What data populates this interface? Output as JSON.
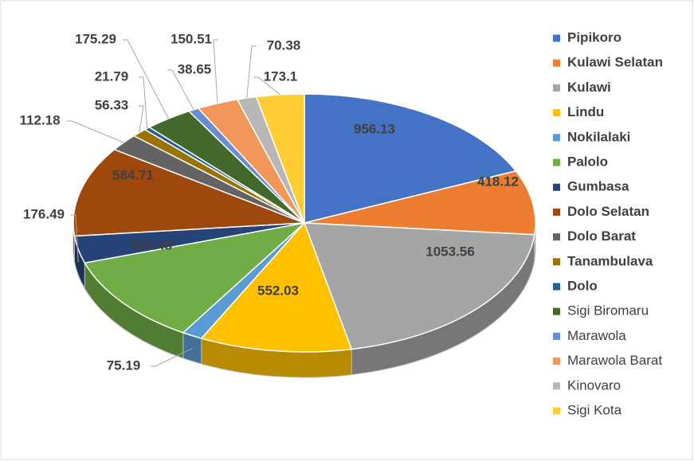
{
  "chart_data": {
    "type": "pie3d",
    "categories": [
      "Pipikoro",
      "Kulawi Selatan",
      "Kulawi",
      "Lindu",
      "Nokilalaki",
      "Palolo",
      "Gumbasa",
      "Dolo Selatan",
      "Dolo Barat",
      "Tanambulava",
      "Dolo",
      "Sigi Biromaru",
      "Marawola",
      "Marawola Barat",
      "Kinovaro",
      "Sigi Kota"
    ],
    "values": [
      956.13,
      418.12,
      1053.56,
      552.03,
      75.19,
      581.48,
      176.49,
      584.71,
      112.18,
      56.33,
      21.79,
      175.29,
      38.65,
      150.51,
      70.38,
      173.1
    ],
    "colors": [
      "#4472c4",
      "#ed7d31",
      "#a5a5a5",
      "#ffc000",
      "#5b9bd5",
      "#70ad47",
      "#264478",
      "#9e480e",
      "#636363",
      "#997300",
      "#255e91",
      "#43682b",
      "#698ed0",
      "#f1975a",
      "#b7b7b7",
      "#ffcd33"
    ],
    "legend": "right"
  }
}
